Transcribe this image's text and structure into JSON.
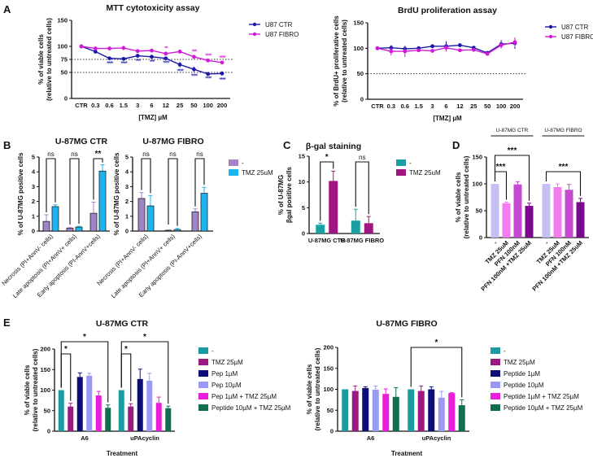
{
  "panel_labels": [
    "A",
    "B",
    "C",
    "D",
    "E"
  ],
  "chart_data": [
    {
      "id": "mtt",
      "type": "line",
      "title": "MTT cytotoxicity assay",
      "xlabel": "[TMZ] µM",
      "ylabel": [
        "% of viable cells",
        "(relative to untreated cells)"
      ],
      "categories": [
        "CTR",
        "0.3",
        "0.6",
        "1.5",
        "3",
        "6",
        "12",
        "25",
        "50",
        "100",
        "200"
      ],
      "ylim": [
        0,
        150
      ],
      "yticks": [
        0,
        50,
        75,
        100,
        150
      ],
      "reference_lines": [
        75,
        50
      ],
      "legend_position": "right",
      "series": [
        {
          "name": "U87 CTR",
          "color": "#1a1aa8",
          "values": [
            100,
            90,
            77,
            76,
            82,
            80,
            77,
            65,
            56,
            47,
            48
          ],
          "errors": [
            0,
            4,
            2,
            1,
            2,
            2,
            1,
            5,
            5,
            1,
            4
          ],
          "annotations": [
            "",
            "",
            "****",
            "****",
            "***",
            "***",
            "****",
            "****",
            "****",
            "****",
            "****"
          ]
        },
        {
          "name": "U87 FIBRO",
          "color": "#d21bd8",
          "values": [
            100,
            96,
            96,
            97,
            91,
            92,
            86,
            90,
            80,
            73,
            69
          ],
          "errors": [
            0,
            2,
            1,
            4,
            3,
            3,
            2,
            4,
            2,
            1,
            1
          ],
          "annotations": [
            "",
            "",
            "",
            "",
            "",
            "",
            "**",
            "",
            "***",
            "****",
            "****"
          ]
        }
      ]
    },
    {
      "id": "brdu",
      "type": "line",
      "title": "BrdU proliferation assay",
      "xlabel": "[TMZ] µM",
      "ylabel": [
        "% of BrdU+ proliferative cells",
        "(relative to untreated cells)"
      ],
      "categories": [
        "CTR",
        "0.3",
        "0.6",
        "1.5",
        "3",
        "6",
        "12",
        "25",
        "50",
        "100",
        "200"
      ],
      "ylim": [
        0,
        150
      ],
      "yticks": [
        0,
        50,
        100,
        150
      ],
      "reference_lines": [
        50
      ],
      "legend_position": "right",
      "series": [
        {
          "name": "U87 CTR",
          "color": "#1a1aa8",
          "values": [
            100,
            101,
            99,
            100,
            104,
            104,
            106,
            101,
            91,
            108,
            110
          ],
          "errors": [
            0,
            5,
            6,
            2,
            3,
            10,
            2,
            3,
            2,
            8,
            11
          ]
        },
        {
          "name": "U87 FIBRO",
          "color": "#d21bd8",
          "values": [
            100,
            94,
            94,
            96,
            95,
            101,
            96,
            97,
            89,
            106,
            112
          ],
          "errors": [
            0,
            8,
            11,
            3,
            3,
            6,
            3,
            3,
            2,
            6,
            9
          ]
        }
      ]
    },
    {
      "id": "b_ctr",
      "type": "bar",
      "title": "U-87MG CTR",
      "ylabel": [
        "% of U-87MG positive cells"
      ],
      "categories": [
        "Necrosis (PI+AnnV- cells)",
        "Late apoptosis (PI+AnnV+ cells)",
        "Early apoptosis (PI-AnnV+cells)"
      ],
      "ylim": [
        0,
        5
      ],
      "yticks": [
        0,
        1,
        2,
        3,
        4,
        5
      ],
      "series": [
        {
          "name": "-",
          "color": "#a084c8",
          "values": [
            0.65,
            0.2,
            1.2
          ],
          "errors": [
            0.45,
            0.03,
            0.75
          ]
        },
        {
          "name": "TMZ 25uM",
          "color": "#1cb4f0",
          "values": [
            1.65,
            0.27,
            4.05
          ],
          "errors": [
            0.12,
            0.05,
            0.42
          ]
        }
      ],
      "significance": [
        {
          "group": 0,
          "from": 0,
          "to": 1,
          "label": "ns"
        },
        {
          "group": 1,
          "from": 0,
          "to": 1,
          "label": "ns"
        },
        {
          "group": 2,
          "from": 0,
          "to": 1,
          "label": "**"
        }
      ]
    },
    {
      "id": "b_fibro",
      "type": "bar",
      "title": "U-87MG FIBRO",
      "ylabel": [
        "% of U-87MG positive cells"
      ],
      "categories": [
        "Necrosis (PI+AnnV- cells)",
        "Late apoptosis (PI+AnnV+ cells)",
        "Early apoptosis (PI-AnnV+cells)"
      ],
      "ylim": [
        0,
        5
      ],
      "yticks": [
        0,
        1,
        2,
        3,
        4,
        5
      ],
      "legend_position": "right",
      "series": [
        {
          "name": "-",
          "color": "#a084c8",
          "values": [
            2.2,
            0.05,
            1.3
          ],
          "errors": [
            0.4,
            0.02,
            0.2
          ]
        },
        {
          "name": "TMZ 25uM",
          "color": "#1cb4f0",
          "values": [
            1.7,
            0.1,
            2.55
          ],
          "errors": [
            0.7,
            0.08,
            0.4
          ]
        }
      ],
      "significance": [
        {
          "group": 0,
          "from": 0,
          "to": 1,
          "label": "ns"
        },
        {
          "group": 1,
          "from": 0,
          "to": 1,
          "label": "ns"
        },
        {
          "group": 2,
          "from": 0,
          "to": 1,
          "label": "ns"
        }
      ]
    },
    {
      "id": "c",
      "type": "bar",
      "title": "β-gal staining",
      "ylabel": [
        "% of U-87MG",
        "βgal positive cells"
      ],
      "categories": [
        "U-87MG CTR",
        "U-87MG FIBRO"
      ],
      "ylim": [
        0,
        15
      ],
      "yticks": [
        0,
        5,
        10,
        15
      ],
      "legend_position": "right",
      "series": [
        {
          "name": "-",
          "color": "#1b9fa3",
          "values": [
            1.7,
            2.5
          ],
          "errors": [
            0.3,
            2.2
          ]
        },
        {
          "name": "TMZ 25uM",
          "color": "#a0167e",
          "values": [
            10.2,
            2.0
          ],
          "errors": [
            1.9,
            1.3
          ]
        }
      ],
      "significance": [
        {
          "group": 0,
          "from": 0,
          "to": 1,
          "label": "*"
        },
        {
          "group": 1,
          "from": 0,
          "to": 1,
          "label": "ns"
        }
      ]
    },
    {
      "id": "d",
      "type": "bar",
      "title": "",
      "ylabel": [
        "% of viable cells",
        "(relative to untreated cells)"
      ],
      "group_headers": [
        "U-87MG CTR",
        "U-87MG FIBRO"
      ],
      "bar_labels": [
        "-",
        "TMZ 25uM",
        "PFN 100nM",
        "PFN 100nM +TMZ 25uM"
      ],
      "ylim": [
        0,
        150
      ],
      "yticks": [
        0,
        50,
        100,
        150
      ],
      "series": [
        {
          "name": "-",
          "color": "#c4c0f4",
          "values": [
            100,
            100
          ],
          "errors": [
            0,
            0
          ]
        },
        {
          "name": "TMZ 25uM",
          "color": "#f27cf0",
          "values": [
            64,
            94
          ],
          "errors": [
            2,
            6
          ]
        },
        {
          "name": "PFN 100nM",
          "color": "#c44ad2",
          "values": [
            99,
            89
          ],
          "errors": [
            5,
            10
          ]
        },
        {
          "name": "PFN 100nM +TMZ 25uM",
          "color": "#7a0a8c",
          "values": [
            59,
            66
          ],
          "errors": [
            5,
            7
          ]
        }
      ],
      "significance": [
        {
          "group": 0,
          "from": 0,
          "to": 1,
          "label": "***"
        },
        {
          "group": 0,
          "from": 0,
          "to": 3,
          "label": "***"
        },
        {
          "group": 1,
          "from": 0,
          "to": 3,
          "label": "***"
        }
      ]
    },
    {
      "id": "e_ctr",
      "type": "bar",
      "title": "U-87MG CTR",
      "xlabel": "Treatment",
      "ylabel": [
        "% of viable cells",
        "(relative to untreated cells)"
      ],
      "categories": [
        "A6",
        "uPAcyclin"
      ],
      "ylim": [
        0,
        200
      ],
      "yticks": [
        0,
        50,
        100,
        150,
        200
      ],
      "legend_position": "right",
      "series": [
        {
          "name": "-",
          "color": "#1b9aa0",
          "values": [
            100,
            100
          ],
          "errors": [
            0,
            0
          ]
        },
        {
          "name": "TMZ 25µM",
          "color": "#9c1a80",
          "values": [
            60,
            60
          ],
          "errors": [
            8,
            7
          ]
        },
        {
          "name": "Pep 1µM",
          "color": "#0d0d78",
          "values": [
            132,
            127
          ],
          "errors": [
            10,
            24
          ]
        },
        {
          "name": "Pep 10µM",
          "color": "#9a9af2",
          "values": [
            135,
            123
          ],
          "errors": [
            6,
            18
          ]
        },
        {
          "name": "Pep 1µM + TMZ 25µM",
          "color": "#e81ed8",
          "values": [
            87,
            69
          ],
          "errors": [
            10,
            14
          ]
        },
        {
          "name": "Peptide 10µM + TMZ 25µM",
          "color": "#0f6e4e",
          "values": [
            57,
            56
          ],
          "errors": [
            7,
            5
          ]
        }
      ],
      "significance": [
        {
          "group": 0,
          "from": 0,
          "to": 1,
          "label": "*"
        },
        {
          "group": 0,
          "from": 0,
          "to": 5,
          "label": "*"
        },
        {
          "group": 1,
          "from": 0,
          "to": 1,
          "label": "*"
        },
        {
          "group": 1,
          "from": 0,
          "to": 5,
          "label": "*"
        }
      ]
    },
    {
      "id": "e_fibro",
      "type": "bar",
      "title": "U-87MG FIBRO",
      "xlabel": "Treatment",
      "ylabel": [
        "% of viable cells",
        "(relative to untreated cells)"
      ],
      "categories": [
        "A6",
        "uPAcyclin"
      ],
      "ylim": [
        0,
        200
      ],
      "yticks": [
        0,
        50,
        100,
        150,
        200
      ],
      "legend_position": "right",
      "series": [
        {
          "name": "-",
          "color": "#1b9aa0",
          "values": [
            100,
            100
          ],
          "errors": [
            0,
            0
          ]
        },
        {
          "name": "TMZ 25µM",
          "color": "#9c1a80",
          "values": [
            96,
            96
          ],
          "errors": [
            12,
            12
          ]
        },
        {
          "name": "Peptide 1µM",
          "color": "#0d0d78",
          "values": [
            103,
            100
          ],
          "errors": [
            3,
            6
          ]
        },
        {
          "name": "Peptide 10µM",
          "color": "#9a9af2",
          "values": [
            99,
            80
          ],
          "errors": [
            9,
            15
          ]
        },
        {
          "name": "Peptide 1µM + TMZ 25µM",
          "color": "#e81ed8",
          "values": [
            89,
            91
          ],
          "errors": [
            12,
            1
          ]
        },
        {
          "name": "Peptide 10µM + TMZ 25µM",
          "color": "#0f6e4e",
          "values": [
            82,
            62
          ],
          "errors": [
            22,
            13
          ]
        }
      ],
      "significance": [
        {
          "group": 1,
          "from": 0,
          "to": 5,
          "label": "*"
        }
      ]
    }
  ]
}
